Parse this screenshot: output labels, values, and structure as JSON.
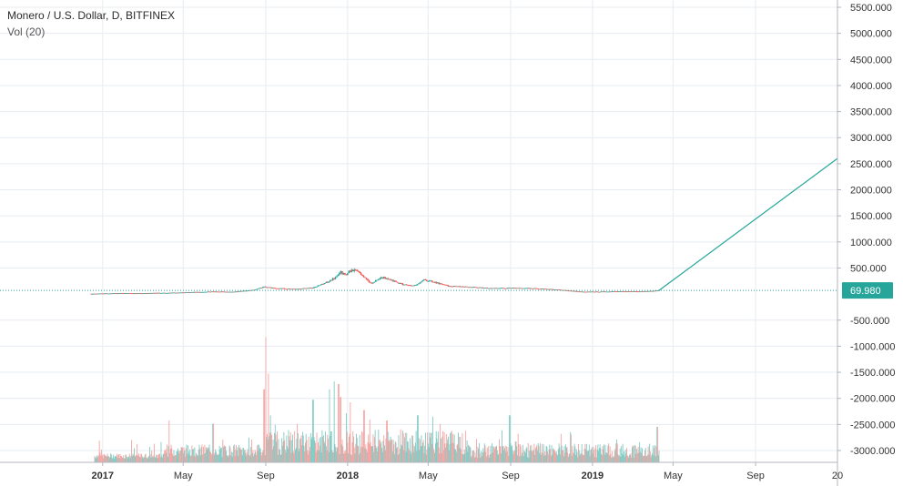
{
  "header": {
    "symbol_title": "Monero / U.S. Dollar, D, BITFINEX",
    "volume_indicator": "Vol (20)"
  },
  "colors": {
    "up": "#26a69a",
    "down": "#ef5350",
    "vol_up": "#80cbc4",
    "vol_down": "#f5a3a1",
    "grid": "#e6ecf1",
    "axis_text": "#333333",
    "last_price_tag": "#26a69a"
  },
  "chart_data": {
    "type": "candlestick",
    "title": "Monero / U.S. Dollar, D, BITFINEX",
    "price_axis": {
      "ylim": [
        -3250,
        5600
      ],
      "ticks": [
        5500,
        5000,
        4500,
        4000,
        3500,
        3000,
        2500,
        2000,
        1500,
        1000,
        500,
        -500,
        -1000,
        -1500,
        -2000,
        -2500,
        -3000
      ],
      "tick_labels": [
        "5500.000",
        "5000.000",
        "4500.000",
        "4000.000",
        "3500.000",
        "3000.000",
        "2500.000",
        "2000.000",
        "1500.000",
        "1000.000",
        "500.000",
        "-500.000",
        "-1000.000",
        "-1500.000",
        "-2000.000",
        "-2500.000",
        "-3000.000"
      ]
    },
    "time_axis": {
      "range": [
        "2016-08-01",
        "2020-01-01"
      ],
      "ticks": [
        "2017-01-01",
        "2017-05-01",
        "2017-09-01",
        "2018-01-01",
        "2018-05-01",
        "2018-09-01",
        "2019-01-01",
        "2019-05-01",
        "2019-09-01",
        "2020-01-01"
      ],
      "tick_labels": [
        "2017",
        "May",
        "Sep",
        "2018",
        "May",
        "Sep",
        "2019",
        "May",
        "Sep",
        "20"
      ],
      "bold_ticks": [
        "2017",
        "2018",
        "2019"
      ]
    },
    "last_price": 69.98,
    "last_price_label": "69.980",
    "price_series": [
      {
        "date": "2016-12-15",
        "close": 5
      },
      {
        "date": "2017-01-15",
        "close": 12
      },
      {
        "date": "2017-03-01",
        "close": 15
      },
      {
        "date": "2017-04-15",
        "close": 25
      },
      {
        "date": "2017-05-15",
        "close": 35
      },
      {
        "date": "2017-06-15",
        "close": 48
      },
      {
        "date": "2017-07-15",
        "close": 42
      },
      {
        "date": "2017-08-15",
        "close": 80
      },
      {
        "date": "2017-08-30",
        "close": 140
      },
      {
        "date": "2017-09-15",
        "close": 110
      },
      {
        "date": "2017-10-15",
        "close": 95
      },
      {
        "date": "2017-11-10",
        "close": 120
      },
      {
        "date": "2017-11-30",
        "close": 220
      },
      {
        "date": "2017-12-15",
        "close": 330
      },
      {
        "date": "2017-12-22",
        "close": 420
      },
      {
        "date": "2017-12-28",
        "close": 360
      },
      {
        "date": "2018-01-07",
        "close": 470
      },
      {
        "date": "2018-01-20",
        "close": 390
      },
      {
        "date": "2018-02-05",
        "close": 190
      },
      {
        "date": "2018-02-20",
        "close": 330
      },
      {
        "date": "2018-03-10",
        "close": 250
      },
      {
        "date": "2018-03-25",
        "close": 180
      },
      {
        "date": "2018-04-10",
        "close": 160
      },
      {
        "date": "2018-04-25",
        "close": 270
      },
      {
        "date": "2018-05-10",
        "close": 230
      },
      {
        "date": "2018-06-01",
        "close": 150
      },
      {
        "date": "2018-07-01",
        "close": 135
      },
      {
        "date": "2018-08-01",
        "close": 110
      },
      {
        "date": "2018-09-01",
        "close": 115
      },
      {
        "date": "2018-10-01",
        "close": 110
      },
      {
        "date": "2018-11-15",
        "close": 80
      },
      {
        "date": "2018-12-15",
        "close": 45
      },
      {
        "date": "2019-01-15",
        "close": 45
      },
      {
        "date": "2019-02-15",
        "close": 50
      },
      {
        "date": "2019-03-15",
        "close": 52
      },
      {
        "date": "2019-04-01",
        "close": 58
      },
      {
        "date": "2019-04-10",
        "close": 69.98
      }
    ],
    "drawing_line": {
      "from": {
        "date": "2019-04-10",
        "value": 69.98
      },
      "to": {
        "date": "2020-01-01",
        "value": 2600
      }
    },
    "volume": {
      "spikes": [
        {
          "date": "2017-04-10",
          "value": -2600
        },
        {
          "date": "2017-06-15",
          "value": -2660
        },
        {
          "date": "2017-08-30",
          "value": -2000
        },
        {
          "date": "2017-09-01",
          "value": -1000
        },
        {
          "date": "2017-09-05",
          "value": -1700
        },
        {
          "date": "2017-09-08",
          "value": -2500
        },
        {
          "date": "2017-11-10",
          "value": -2200
        },
        {
          "date": "2017-12-05",
          "value": -2000
        },
        {
          "date": "2017-12-12",
          "value": -1850
        },
        {
          "date": "2017-12-18",
          "value": -1900
        },
        {
          "date": "2017-12-22",
          "value": -2150
        },
        {
          "date": "2018-01-05",
          "value": -2250
        },
        {
          "date": "2018-01-25",
          "value": -2400
        },
        {
          "date": "2018-03-01",
          "value": -2600
        },
        {
          "date": "2018-04-15",
          "value": -2500
        },
        {
          "date": "2018-08-30",
          "value": -2500
        },
        {
          "date": "2019-04-08",
          "value": -2720
        }
      ]
    }
  }
}
